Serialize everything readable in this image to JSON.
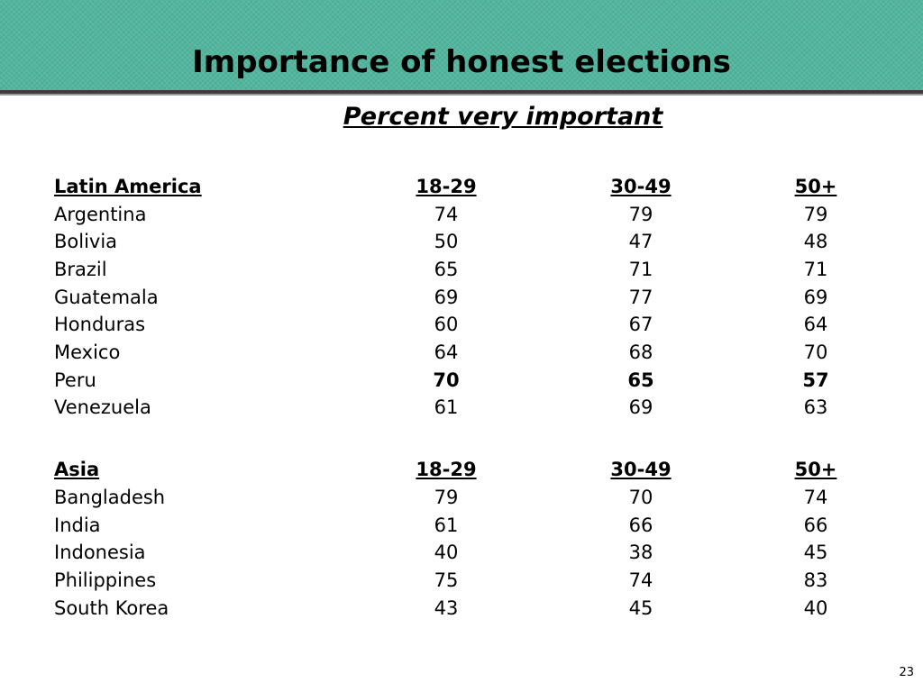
{
  "slide": {
    "title": "Importance of honest elections",
    "subtitle": "Percent very important",
    "page_number": "23"
  },
  "latin_america": {
    "header": {
      "region": "Latin America",
      "col1": "18-29",
      "col2": "30-49",
      "col3": "50+"
    },
    "rows": [
      {
        "country": "Argentina",
        "v1": "74",
        "v2": "79",
        "v3": "79"
      },
      {
        "country": "Bolivia",
        "v1": "50",
        "v2": "47",
        "v3": "48"
      },
      {
        "country": "Brazil",
        "v1": "65",
        "v2": "71",
        "v3": "71"
      },
      {
        "country": "Guatemala",
        "v1": "69",
        "v2": "77",
        "v3": "69"
      },
      {
        "country": "Honduras",
        "v1": "60",
        "v2": "67",
        "v3": "64"
      },
      {
        "country": "Mexico",
        "v1": "64",
        "v2": "68",
        "v3": "70"
      },
      {
        "country": "Peru",
        "v1": "70",
        "v2": "65",
        "v3": "57"
      },
      {
        "country": "Venezuela",
        "v1": "61",
        "v2": "69",
        "v3": "63"
      }
    ]
  },
  "asia": {
    "header": {
      "region": "Asia",
      "col1": "18-29",
      "col2": "30-49",
      "col3": "50+"
    },
    "rows": [
      {
        "country": "Bangladesh",
        "v1": "79",
        "v2": "70",
        "v3": "74"
      },
      {
        "country": "India",
        "v1": "61",
        "v2": "66",
        "v3": "66"
      },
      {
        "country": "Indonesia",
        "v1": "40",
        "v2": "38",
        "v3": "45"
      },
      {
        "country": "Philippines",
        "v1": "75",
        "v2": "74",
        "v3": "83"
      },
      {
        "country": "South Korea",
        "v1": "43",
        "v2": "45",
        "v3": "40"
      }
    ]
  },
  "colors": {
    "header_band": "#52b59d",
    "header_rule": "#3d3d3d"
  }
}
